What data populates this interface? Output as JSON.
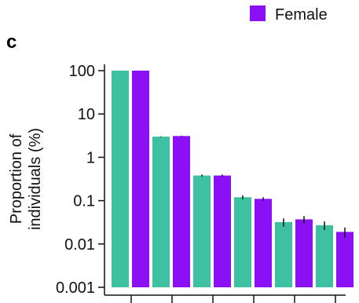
{
  "chart_data": {
    "type": "bar",
    "panel_label": "c",
    "ylabel": [
      "Proportion of",
      "individuals (%)"
    ],
    "yscale": "log",
    "ylim": [
      0.001,
      100
    ],
    "yticks": [
      {
        "value": 100,
        "label": "100"
      },
      {
        "value": 10,
        "label": "10"
      },
      {
        "value": 1,
        "label": "1"
      },
      {
        "value": 0.1,
        "label": "0.1"
      },
      {
        "value": 0.01,
        "label": "0.01"
      },
      {
        "value": 0.001,
        "label": "0.001"
      }
    ],
    "categories_visible": false,
    "legend": {
      "position": "top-right",
      "entries": [
        "Female"
      ]
    },
    "series": [
      {
        "color": "#3ec1a0",
        "values": [
          100,
          3.0,
          0.38,
          0.12,
          0.032,
          0.027
        ],
        "errors": [
          0,
          0.05,
          0.02,
          0.012,
          0.007,
          0.006
        ]
      },
      {
        "name": "Female",
        "color": "#8b10f5",
        "values": [
          100,
          3.1,
          0.38,
          0.11,
          0.037,
          0.019
        ],
        "errors": [
          0,
          0.05,
          0.02,
          0.01,
          0.007,
          0.005
        ]
      }
    ]
  }
}
